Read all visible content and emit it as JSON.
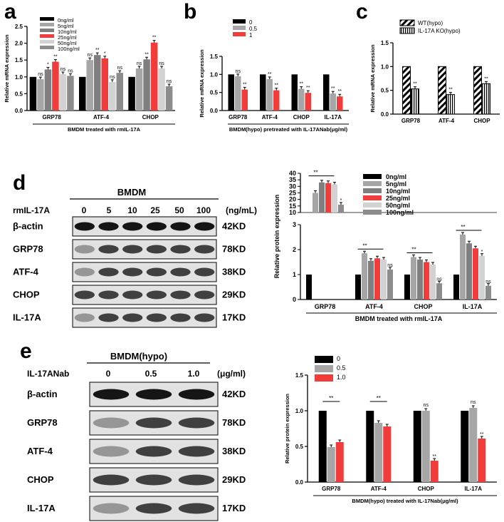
{
  "panel_letters": {
    "a": "a",
    "b": "b",
    "c": "c",
    "d": "d",
    "e": "e"
  },
  "colors": {
    "black": "#000000",
    "grey1": "#a6a6a6",
    "grey2": "#7f7f7f",
    "red": "#f23c3c",
    "grey3": "#d2d2d2",
    "grey4": "#8c8c8c"
  },
  "chart_data": [
    {
      "id": "a",
      "type": "bar",
      "title": "",
      "xlabel": "BMDM treated with rmIL-17A",
      "ylabel": "Relative mRNA expression",
      "ylim": [
        0,
        2.5
      ],
      "yticks": [
        "0.0",
        "0.5",
        "1.0",
        "1.5",
        "2.0",
        "2.5"
      ],
      "categories": [
        "GRP78",
        "ATF-4",
        "CHOP"
      ],
      "series": [
        {
          "name": "0ng/ml",
          "values": [
            1.0,
            1.0,
            1.0
          ]
        },
        {
          "name": "5ng/ml",
          "values": [
            0.93,
            1.5,
            1.25
          ]
        },
        {
          "name": "10ng/ml",
          "values": [
            1.22,
            1.65,
            1.52
          ]
        },
        {
          "name": "25ng/ml",
          "values": [
            1.45,
            1.55,
            2.02
          ]
        },
        {
          "name": "50ng/ml",
          "values": [
            1.08,
            0.85,
            1.25
          ]
        },
        {
          "name": "100ng/ml",
          "values": [
            1.03,
            1.12,
            0.72
          ]
        }
      ],
      "sig": [
        [
          "ns",
          "*",
          "**",
          "ns",
          "ns"
        ],
        [
          "ns",
          "**",
          "*",
          "ns",
          "ns"
        ],
        [
          "ns",
          "**",
          "**",
          "ns",
          "ns"
        ]
      ],
      "legend": "top-left"
    },
    {
      "id": "b",
      "type": "bar",
      "title": "",
      "xlabel": "BMDM(hypo) pretreated with IL-17ANab(μg/ml)",
      "ylabel": "Relative mRNA expression",
      "ylim": [
        0,
        1.5
      ],
      "yticks": [
        "0.0",
        "0.5",
        "1.0",
        "1.5"
      ],
      "categories": [
        "GRP78",
        "ATF-4",
        "CHOP",
        "IL-17A"
      ],
      "series": [
        {
          "name": "0",
          "values": [
            1.0,
            1.0,
            1.0,
            1.0
          ]
        },
        {
          "name": "0.5",
          "values": [
            0.95,
            0.87,
            0.6,
            0.47
          ]
        },
        {
          "name": "1",
          "values": [
            0.58,
            0.56,
            0.49,
            0.39
          ]
        }
      ],
      "sig": [
        [
          "ns",
          "**"
        ],
        [
          "**",
          "**"
        ],
        [
          "**",
          "**"
        ],
        [
          "**",
          "**"
        ]
      ],
      "legend": "top-left"
    },
    {
      "id": "c",
      "type": "bar",
      "title": "",
      "xlabel": "",
      "ylabel": "Relative mRNA expression",
      "ylim": [
        0,
        1.5
      ],
      "yticks": [
        "0.0",
        "0.5",
        "1.0",
        "1.5"
      ],
      "categories": [
        "GRP78",
        "ATF-4",
        "CHOP"
      ],
      "series": [
        {
          "name": "WT(hypo)",
          "values": [
            1.0,
            1.0,
            1.0
          ]
        },
        {
          "name": "IL-17A KO(hypo)",
          "values": [
            0.53,
            0.41,
            0.64
          ]
        }
      ],
      "sig": [
        [
          "**"
        ],
        [
          "**"
        ],
        [
          "**"
        ]
      ],
      "legend": "top-left"
    },
    {
      "id": "d",
      "type": "bar",
      "title": "",
      "xlabel": "BMDM  treated with rmIL-17A",
      "ylabel": "Relative protein expression",
      "ylim_lower": [
        0,
        3
      ],
      "ylim_upper": [
        10,
        40
      ],
      "yticks_lower": [
        "0",
        "1",
        "2",
        "3"
      ],
      "yticks_upper": [
        "10",
        "15",
        "20",
        "25",
        "30",
        "35",
        "40"
      ],
      "categories": [
        "GRP78",
        "ATF-4",
        "CHOP",
        "IL-17A"
      ],
      "series": [
        {
          "name": "0ng/ml",
          "values": [
            1.0,
            1.0,
            1.0,
            1.0
          ]
        },
        {
          "name": "5ng/ml",
          "values": [
            25,
            1.85,
            1.7,
            2.6
          ]
        },
        {
          "name": "10ng/ml",
          "values": [
            33,
            1.55,
            1.6,
            2.25
          ]
        },
        {
          "name": "25ng/ml",
          "values": [
            32.5,
            1.65,
            1.5,
            2.05
          ]
        },
        {
          "name": "50ng/ml",
          "values": [
            31.5,
            1.6,
            1.4,
            1.75
          ]
        },
        {
          "name": "100ng/ml",
          "values": [
            16,
            1.2,
            0.65,
            0.55
          ]
        }
      ],
      "sig_labels": {
        "star": "*",
        "double": "**",
        "ns": "ns"
      },
      "legend": "top-right"
    },
    {
      "id": "e",
      "type": "bar",
      "title": "",
      "xlabel": "BMDM(hypo) treated with IL-17Nab(μg/ml)",
      "ylabel": "Relative protein expression",
      "ylim": [
        0,
        1.5
      ],
      "yticks": [
        "0.0",
        "0.5",
        "1.0",
        "1.5"
      ],
      "categories": [
        "GRP78",
        "ATF-4",
        "CHOP",
        "IL-17A"
      ],
      "series": [
        {
          "name": "0",
          "values": [
            1.0,
            1.0,
            1.0,
            1.0
          ]
        },
        {
          "name": "0.5",
          "values": [
            0.49,
            0.83,
            1.0,
            1.04
          ]
        },
        {
          "name": "1.0",
          "values": [
            0.56,
            0.78,
            0.3,
            0.61
          ]
        }
      ],
      "sig_labels": {
        "double": "**",
        "ns": "ns"
      },
      "legend": "top-left"
    }
  ],
  "blot_d": {
    "header": "BMDM",
    "treatment_label": "rmIL-17A",
    "doses": [
      "0",
      "5",
      "10",
      "25",
      "50",
      "100"
    ],
    "unit": "(ng/mL)",
    "rows": [
      {
        "name": "β-actin",
        "size": "42KD"
      },
      {
        "name": "GRP78",
        "size": "78KD"
      },
      {
        "name": "ATF-4",
        "size": "38KD"
      },
      {
        "name": "CHOP",
        "size": "29KD"
      },
      {
        "name": "IL-17A",
        "size": "17KD"
      }
    ]
  },
  "blot_e": {
    "header": "BMDM(hypo)",
    "treatment_label": "IL-17ANab",
    "doses": [
      "0",
      "0.5",
      "1.0"
    ],
    "unit": "(μg/ml)",
    "rows": [
      {
        "name": "β-actin",
        "size": "42KD"
      },
      {
        "name": "GRP78",
        "size": "78KD"
      },
      {
        "name": "ATF-4",
        "size": "38KD"
      },
      {
        "name": "CHOP",
        "size": "29KD"
      },
      {
        "name": "IL-17A",
        "size": "17KD"
      }
    ]
  }
}
